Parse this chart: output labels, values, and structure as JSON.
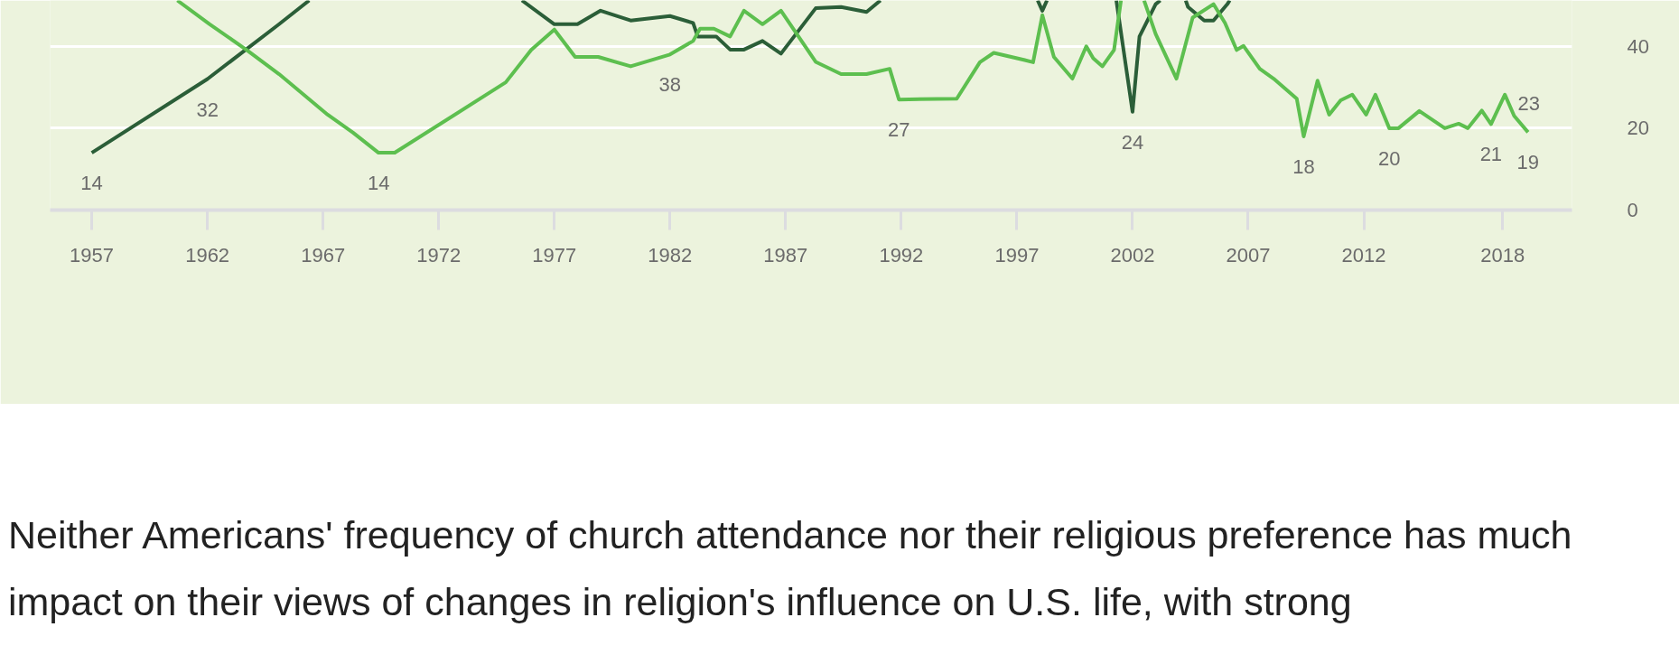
{
  "chart_data": {
    "type": "line",
    "grid": "y",
    "xlim": [
      1955.2,
      2021.0
    ],
    "ylim": [
      0,
      51.2
    ],
    "xticks": [
      1957,
      1962,
      1967,
      1972,
      1977,
      1982,
      1987,
      1992,
      1997,
      2002,
      2007,
      2012,
      2018
    ],
    "yticks": [
      0,
      20,
      40
    ],
    "series": [
      {
        "color": "#2b5e38",
        "x": [
          1957,
          1962,
          1965.1,
          1966.4,
          1971,
          1975.6,
          1977,
          1978,
          1979,
          1980.3,
          1982,
          1983,
          1983.2,
          1984,
          1984.6,
          1985.2,
          1986,
          1986.8,
          1988.3,
          1989.4,
          1990.5,
          1991.1,
          1994,
          1997.9,
          1998.1,
          1998.3,
          2000,
          2001.3,
          2002,
          2002.3,
          2003,
          2003.2,
          2003.8,
          2004.3,
          2004.4,
          2005.1,
          2005.5,
          2006.1,
          2006.2
        ],
        "values": [
          14,
          32,
          45.4,
          51.2,
          null,
          51.2,
          45.4,
          45.4,
          48.7,
          46.3,
          47.4,
          45.7,
          42.4,
          42.4,
          39.2,
          39.2,
          41.3,
          38.2,
          49.3,
          49.6,
          48.4,
          51.2,
          null,
          51.2,
          48.7,
          51.2,
          null,
          51.2,
          24,
          42.4,
          50.3,
          51.2,
          null,
          51.2,
          49.6,
          46.3,
          46.3,
          50.3,
          51.2
        ],
        "value_labels": [
          "14",
          "32",
          null,
          null,
          null,
          null,
          null,
          null,
          null,
          null,
          null,
          null,
          null,
          null,
          null,
          null,
          null,
          null,
          null,
          null,
          null,
          null,
          null,
          null,
          null,
          null,
          null,
          null,
          "24",
          null,
          null,
          null,
          null,
          null,
          null,
          null,
          null,
          null,
          null
        ]
      },
      {
        "color": "#5dbf4f",
        "x": [
          1960.7,
          1962.1,
          1963.7,
          1965.1,
          1967.2,
          1968.3,
          1969.4,
          1970.1,
          1974.9,
          1976,
          1977,
          1977.9,
          1978.9,
          1980.3,
          1982,
          1983,
          1983.3,
          1983.9,
          1984.6,
          1985.2,
          1986,
          1986.8,
          1988.3,
          1989.4,
          1990.5,
          1991.5,
          1991.9,
          1994.4,
          1995.4,
          1996,
          1997.3,
          1997.7,
          1998.1,
          1998.6,
          1999.4,
          2000,
          2000.3,
          2000.7,
          2001.2,
          2001.5,
          2002,
          2002.5,
          2003,
          2003.9,
          2004.6,
          2005.5,
          2006,
          2006.5,
          2006.8,
          2007.5,
          2008.1,
          2009.1,
          2009.4,
          2010,
          2010.5,
          2011,
          2011.5,
          2012.1,
          2012.5,
          2013.1,
          2013.5,
          2014.4,
          2015.5,
          2016.1,
          2016.5,
          2017.1,
          2017.5,
          2018.1,
          2018.5,
          2019.1
        ],
        "values": [
          51.2,
          45.4,
          39.1,
          33.2,
          23.3,
          18.9,
          14,
          14,
          31.2,
          39.1,
          44.1,
          37.4,
          37.4,
          35.1,
          38,
          41.3,
          44.3,
          44.3,
          42.4,
          48.7,
          45.4,
          48.7,
          36.2,
          33.2,
          33.2,
          34.5,
          27,
          27.2,
          36.1,
          38.4,
          36.7,
          36.1,
          47.6,
          37.4,
          32.1,
          40,
          37.1,
          35.1,
          39.1,
          51.2,
          null,
          51.2,
          43,
          32.1,
          47,
          50.3,
          45.7,
          39.1,
          40.1,
          34.5,
          32.1,
          27.2,
          18,
          31.6,
          23.3,
          26.8,
          28.2,
          23.3,
          28.2,
          20,
          20,
          24.2,
          20,
          21.1,
          20,
          24.3,
          21,
          28.2,
          23,
          19
        ],
        "value_labels": [
          null,
          null,
          null,
          null,
          null,
          null,
          "14",
          null,
          null,
          null,
          null,
          null,
          null,
          null,
          "38",
          null,
          null,
          null,
          null,
          null,
          null,
          null,
          null,
          null,
          null,
          null,
          "27",
          null,
          null,
          null,
          null,
          null,
          null,
          null,
          null,
          null,
          null,
          null,
          null,
          null,
          null,
          null,
          null,
          null,
          null,
          null,
          null,
          null,
          null,
          null,
          null,
          null,
          "18",
          null,
          null,
          null,
          null,
          null,
          null,
          "20",
          null,
          null,
          null,
          null,
          null,
          null,
          "21",
          null,
          "23",
          "19"
        ]
      }
    ],
    "annotations": [
      "Neither Americans' frequency of church attendance nor their religious preference has much impact on their views of changes in religion's influence on U.S. life, with strong"
    ]
  }
}
